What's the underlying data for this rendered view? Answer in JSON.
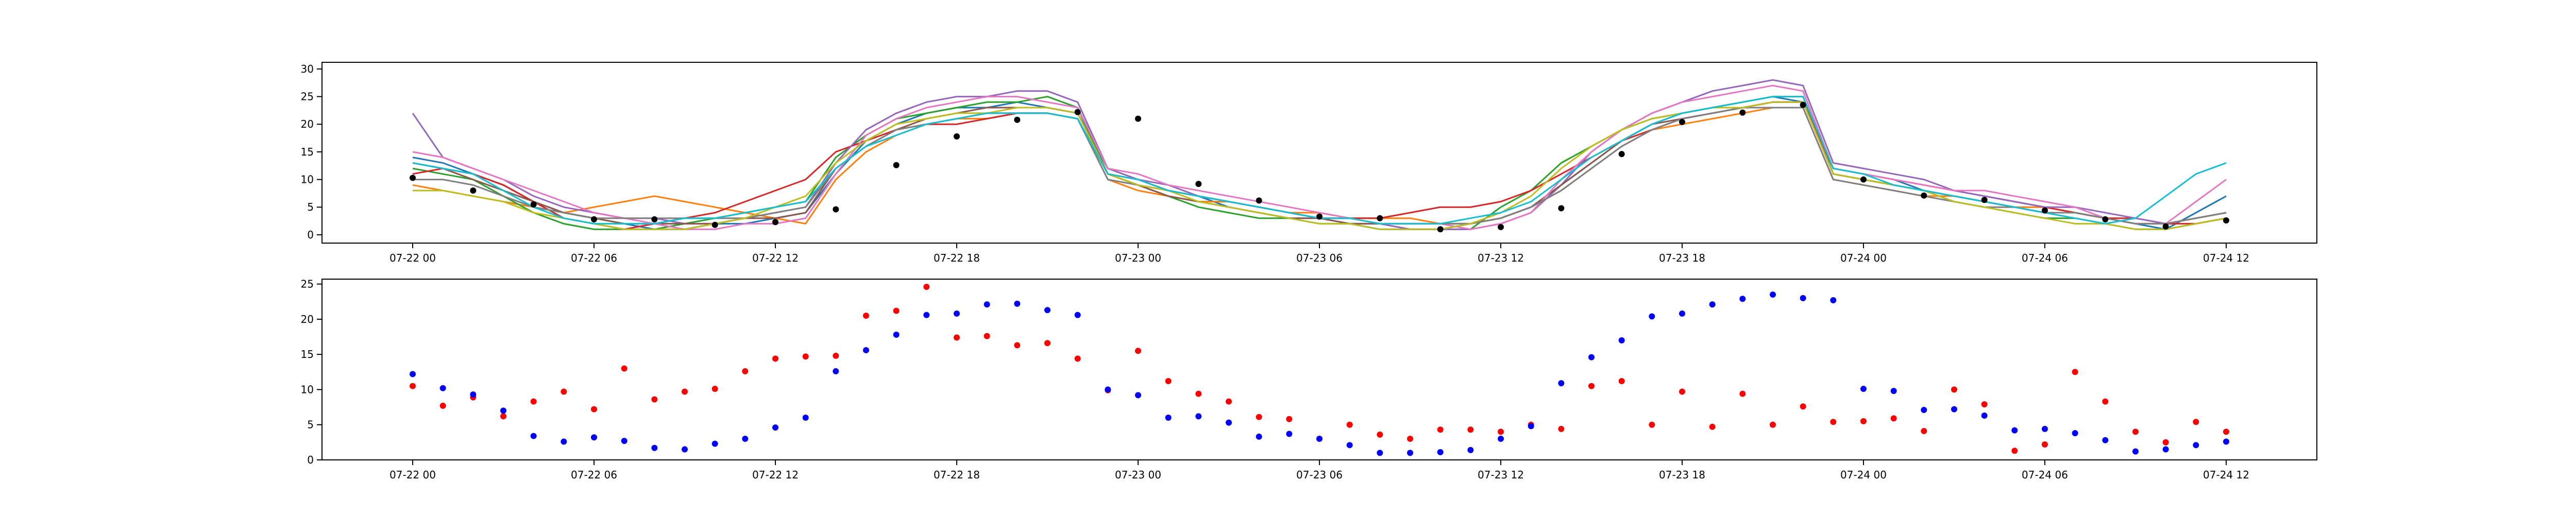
{
  "chart_data": [
    {
      "type": "line",
      "x": [
        0,
        1,
        2,
        3,
        4,
        5,
        6,
        7,
        8,
        9,
        10,
        11,
        12,
        13,
        14,
        15,
        16,
        17,
        18,
        19,
        20,
        21,
        22,
        23,
        24,
        25,
        26,
        27,
        28,
        29,
        30,
        31,
        32,
        33,
        34,
        35,
        36,
        37,
        38,
        39,
        40,
        41,
        42,
        43,
        44,
        45,
        46,
        47,
        48,
        49,
        50,
        51,
        52,
        53,
        54,
        55,
        56,
        57,
        58,
        59,
        60
      ],
      "xlim": [
        -3,
        63
      ],
      "xticks": [
        {
          "value": 0,
          "label": "07-22 00"
        },
        {
          "value": 6,
          "label": "07-22 06"
        },
        {
          "value": 12,
          "label": "07-22 12"
        },
        {
          "value": 18,
          "label": "07-22 18"
        },
        {
          "value": 24,
          "label": "07-23 00"
        },
        {
          "value": 30,
          "label": "07-23 06"
        },
        {
          "value": 36,
          "label": "07-23 12"
        },
        {
          "value": 42,
          "label": "07-23 18"
        },
        {
          "value": 48,
          "label": "07-24 00"
        },
        {
          "value": 54,
          "label": "07-24 06"
        },
        {
          "value": 60,
          "label": "07-24 12"
        }
      ],
      "ylim": [
        -1.5,
        31.2
      ],
      "yticks": [
        0,
        5,
        10,
        15,
        20,
        25,
        30
      ],
      "series": [
        {
          "color": "#1f77b4",
          "values": [
            14,
            13,
            11,
            9,
            6,
            4,
            3,
            2,
            1,
            1,
            2,
            2,
            3,
            4,
            11,
            17,
            20,
            22,
            23,
            23,
            24,
            23,
            22,
            12,
            10,
            8,
            7,
            5,
            4,
            3,
            3,
            2,
            1,
            1,
            1,
            2,
            3,
            5,
            9,
            13,
            17,
            20,
            22,
            23,
            24,
            25,
            24,
            12,
            11,
            10,
            8,
            7,
            6,
            5,
            4,
            4,
            3,
            2,
            1,
            4,
            7
          ]
        },
        {
          "color": "#ff7f0e",
          "values": [
            9,
            8,
            7,
            6,
            5,
            4,
            5,
            6,
            7,
            6,
            5,
            4,
            3,
            2,
            10,
            15,
            18,
            20,
            21,
            21,
            22,
            22,
            21,
            10,
            8,
            7,
            6,
            6,
            5,
            4,
            4,
            3,
            3,
            3,
            2,
            2,
            3,
            5,
            8,
            12,
            16,
            19,
            20,
            21,
            22,
            23,
            23,
            10,
            9,
            8,
            7,
            7,
            6,
            5,
            5,
            4,
            3,
            2,
            2,
            3,
            4
          ]
        },
        {
          "color": "#2ca02c",
          "values": [
            12,
            11,
            10,
            7,
            4,
            2,
            1,
            1,
            1,
            2,
            3,
            4,
            5,
            6,
            14,
            18,
            21,
            22,
            23,
            24,
            24,
            25,
            23,
            11,
            9,
            7,
            5,
            4,
            3,
            3,
            2,
            2,
            2,
            1,
            1,
            1,
            5,
            8,
            13,
            16,
            19,
            21,
            22,
            23,
            24,
            25,
            25,
            11,
            10,
            9,
            8,
            6,
            5,
            4,
            3,
            3,
            2,
            1,
            1,
            2,
            3
          ]
        },
        {
          "color": "#d62728",
          "values": [
            11,
            12,
            11,
            9,
            6,
            3,
            2,
            1,
            2,
            3,
            4,
            6,
            8,
            10,
            15,
            17,
            19,
            20,
            20,
            21,
            22,
            22,
            21,
            11,
            10,
            8,
            7,
            6,
            5,
            4,
            3,
            3,
            3,
            4,
            5,
            5,
            6,
            8,
            11,
            14,
            17,
            19,
            21,
            22,
            23,
            24,
            24,
            12,
            11,
            10,
            9,
            8,
            7,
            6,
            5,
            4,
            3,
            3,
            2,
            2,
            3
          ]
        },
        {
          "color": "#9467bd",
          "values": [
            22,
            14,
            12,
            10,
            7,
            5,
            4,
            3,
            3,
            2,
            2,
            3,
            4,
            5,
            13,
            19,
            22,
            24,
            25,
            25,
            26,
            26,
            24,
            12,
            10,
            9,
            7,
            6,
            5,
            4,
            3,
            2,
            2,
            1,
            1,
            1,
            2,
            4,
            9,
            15,
            19,
            22,
            24,
            26,
            27,
            28,
            27,
            13,
            12,
            11,
            10,
            8,
            7,
            6,
            5,
            5,
            4,
            3,
            2,
            3,
            4
          ]
        },
        {
          "color": "#8c564b",
          "values": [
            13,
            12,
            10,
            8,
            6,
            4,
            3,
            2,
            2,
            2,
            2,
            3,
            3,
            4,
            12,
            16,
            19,
            21,
            22,
            23,
            23,
            23,
            22,
            11,
            9,
            7,
            6,
            5,
            4,
            3,
            3,
            2,
            2,
            2,
            2,
            2,
            3,
            5,
            9,
            13,
            17,
            20,
            21,
            22,
            23,
            24,
            24,
            11,
            10,
            9,
            8,
            7,
            6,
            5,
            4,
            4,
            3,
            2,
            2,
            3,
            4
          ]
        },
        {
          "color": "#e377c2",
          "values": [
            15,
            14,
            12,
            10,
            8,
            6,
            4,
            3,
            2,
            1,
            1,
            2,
            2,
            3,
            11,
            18,
            21,
            23,
            24,
            25,
            25,
            24,
            23,
            12,
            11,
            9,
            8,
            7,
            6,
            5,
            4,
            3,
            2,
            2,
            2,
            1,
            2,
            4,
            10,
            15,
            19,
            22,
            24,
            25,
            26,
            27,
            26,
            12,
            11,
            10,
            9,
            8,
            8,
            7,
            6,
            5,
            3,
            2,
            2,
            6,
            10
          ]
        },
        {
          "color": "#7f7f7f",
          "values": [
            10,
            10,
            9,
            7,
            5,
            4,
            3,
            3,
            3,
            3,
            3,
            3,
            4,
            5,
            12,
            16,
            19,
            20,
            21,
            22,
            22,
            22,
            21,
            10,
            9,
            8,
            7,
            6,
            5,
            4,
            3,
            3,
            2,
            2,
            2,
            2,
            3,
            5,
            8,
            12,
            16,
            19,
            21,
            22,
            23,
            23,
            23,
            10,
            9,
            8,
            7,
            6,
            5,
            5,
            4,
            4,
            3,
            2,
            2,
            3,
            4
          ]
        },
        {
          "color": "#bcbd22",
          "values": [
            8,
            8,
            7,
            6,
            4,
            3,
            2,
            1,
            1,
            1,
            2,
            3,
            5,
            7,
            13,
            17,
            20,
            21,
            22,
            22,
            23,
            23,
            22,
            11,
            9,
            8,
            6,
            5,
            4,
            3,
            2,
            2,
            1,
            1,
            1,
            2,
            4,
            7,
            12,
            16,
            19,
            21,
            22,
            23,
            23,
            24,
            24,
            11,
            10,
            9,
            8,
            6,
            5,
            4,
            3,
            2,
            2,
            1,
            1,
            2,
            3
          ]
        },
        {
          "color": "#17becf",
          "values": [
            13,
            12,
            11,
            8,
            5,
            3,
            2,
            2,
            2,
            3,
            3,
            4,
            5,
            6,
            12,
            16,
            18,
            20,
            21,
            22,
            22,
            22,
            21,
            11,
            10,
            8,
            7,
            6,
            5,
            4,
            3,
            3,
            2,
            2,
            2,
            3,
            4,
            6,
            10,
            14,
            17,
            20,
            22,
            23,
            24,
            25,
            25,
            12,
            11,
            9,
            8,
            7,
            6,
            5,
            4,
            3,
            2,
            3,
            7,
            11,
            13
          ]
        },
        {
          "type": "scatter",
          "color": "#000000",
          "x": [
            0,
            2,
            4,
            6,
            8,
            10,
            12,
            14,
            16,
            18,
            20,
            22,
            24,
            26,
            28,
            30,
            32,
            34,
            36,
            38,
            40,
            42,
            44,
            46,
            48,
            50,
            52,
            54,
            56,
            58,
            60
          ],
          "values": [
            10.3,
            8,
            5.5,
            2.8,
            2.8,
            1.8,
            2.3,
            4.6,
            12.6,
            17.8,
            20.8,
            22.2,
            21,
            9.2,
            6.2,
            3.3,
            3,
            1,
            1.4,
            4.8,
            14.6,
            20.4,
            22.1,
            23.5,
            10,
            7.1,
            6.3,
            4.4,
            2.8,
            1.5,
            2.6
          ]
        }
      ]
    },
    {
      "type": "scatter",
      "x": [
        0,
        1,
        2,
        3,
        4,
        5,
        6,
        7,
        8,
        9,
        10,
        11,
        12,
        13,
        14,
        15,
        16,
        17,
        18,
        19,
        20,
        21,
        22,
        23,
        24,
        25,
        26,
        27,
        28,
        29,
        30,
        31,
        32,
        33,
        34,
        35,
        36,
        37,
        38,
        39,
        40,
        41,
        42,
        43,
        44,
        45,
        46,
        47,
        48,
        49,
        50,
        51,
        52,
        53,
        54,
        55,
        56,
        57,
        58,
        59,
        60
      ],
      "xlim": [
        -3,
        63
      ],
      "xticks": [
        {
          "value": 0,
          "label": "07-22 00"
        },
        {
          "value": 6,
          "label": "07-22 06"
        },
        {
          "value": 12,
          "label": "07-22 12"
        },
        {
          "value": 18,
          "label": "07-22 18"
        },
        {
          "value": 24,
          "label": "07-23 00"
        },
        {
          "value": 30,
          "label": "07-23 06"
        },
        {
          "value": 36,
          "label": "07-23 12"
        },
        {
          "value": 42,
          "label": "07-23 18"
        },
        {
          "value": 48,
          "label": "07-24 00"
        },
        {
          "value": 54,
          "label": "07-24 06"
        },
        {
          "value": 60,
          "label": "07-24 12"
        }
      ],
      "ylim": [
        0,
        25.7
      ],
      "yticks": [
        0,
        5,
        10,
        15,
        20,
        25
      ],
      "series": [
        {
          "color": "#ff0000",
          "values": [
            10.5,
            7.7,
            8.9,
            6.2,
            8.3,
            9.7,
            7.2,
            13.0,
            8.6,
            9.7,
            10.1,
            12.6,
            14.4,
            14.7,
            14.8,
            20.5,
            21.2,
            24.6,
            17.4,
            17.6,
            16.3,
            16.6,
            14.4,
            9.9,
            15.5,
            11.2,
            9.4,
            8.3,
            6.1,
            5.8,
            3.0,
            5.0,
            3.6,
            3.0,
            4.3,
            4.3,
            4.0,
            5.0,
            4.4,
            10.5,
            11.2,
            5.0,
            9.7,
            4.7,
            9.4,
            5.0,
            7.6,
            5.4,
            5.5,
            5.9,
            4.1,
            10.0,
            7.9,
            1.3,
            2.2,
            12.5,
            8.3,
            4.0,
            2.5,
            5.4,
            4.0
          ]
        },
        {
          "color": "#0000ff",
          "values": [
            12.2,
            10.2,
            9.3,
            7.0,
            3.4,
            2.6,
            3.2,
            2.7,
            1.7,
            1.5,
            2.3,
            3.0,
            4.6,
            6.0,
            12.6,
            15.6,
            17.8,
            20.6,
            20.8,
            22.1,
            22.2,
            21.3,
            20.6,
            10.0,
            9.2,
            6.0,
            6.2,
            5.3,
            3.3,
            3.7,
            3.0,
            2.1,
            1.0,
            1.0,
            1.1,
            1.4,
            3.0,
            4.8,
            10.9,
            14.6,
            17.0,
            20.4,
            20.8,
            22.1,
            22.9,
            23.5,
            23.0,
            22.7,
            10.1,
            9.8,
            7.1,
            7.2,
            6.3,
            4.2,
            4.4,
            3.8,
            2.8,
            1.2,
            1.5,
            2.1,
            2.6
          ]
        }
      ]
    }
  ]
}
